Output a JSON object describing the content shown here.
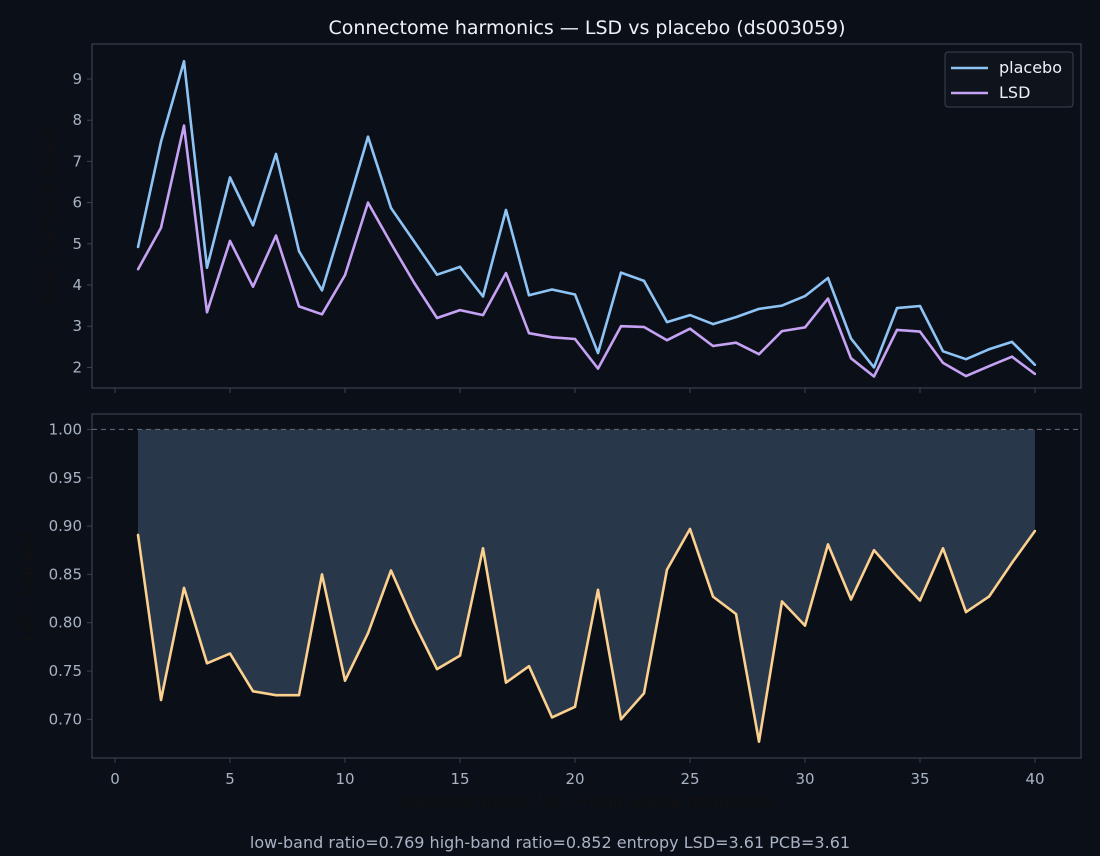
{
  "chart_data": {
    "title": "Connectome harmonics — LSD vs placebo (ds003059)",
    "footer": "low-band ratio=0.769  high-band ratio=0.852  entropy LSD=3.61 PCB=3.61",
    "colors": {
      "background": "#0b0f17",
      "frame": "#3a4150",
      "placebo": "#8ec4f5",
      "lsd": "#c6a2f5",
      "ratio": "#fcd08f",
      "fill": "#2b3a4e",
      "reference": "#5d6575"
    },
    "panels": [
      {
        "type": "line",
        "ylabel": "mean harmonic power",
        "xlim": [
          -1,
          42
        ],
        "ylim": [
          1.5,
          9.85
        ],
        "xticks": [],
        "yticks": [
          2,
          3,
          4,
          5,
          6,
          7,
          8,
          9
        ],
        "grid": false,
        "legend": "top-right",
        "series": [
          {
            "name": "placebo",
            "x": [
              1,
              2,
              3,
              4,
              5,
              6,
              7,
              8,
              9,
              10,
              11,
              12,
              13,
              14,
              15,
              16,
              17,
              18,
              19,
              20,
              21,
              22,
              23,
              24,
              25,
              26,
              27,
              28,
              29,
              30,
              31,
              32,
              33,
              34,
              35,
              36,
              37,
              38,
              39,
              40
            ],
            "y": [
              4.92,
              7.48,
              9.43,
              4.42,
              6.61,
              5.45,
              7.18,
              4.82,
              3.87,
              5.71,
              7.6,
              5.87,
              5.06,
              4.25,
              4.44,
              3.72,
              5.82,
              3.75,
              3.89,
              3.77,
              2.35,
              4.3,
              4.1,
              3.1,
              3.27,
              3.05,
              3.22,
              3.42,
              3.5,
              3.73,
              4.17,
              2.7,
              2.0,
              3.44,
              3.49,
              2.39,
              2.2,
              2.44,
              2.62,
              2.06
            ]
          },
          {
            "name": "LSD",
            "x": [
              1,
              2,
              3,
              4,
              5,
              6,
              7,
              8,
              9,
              10,
              11,
              12,
              13,
              14,
              15,
              16,
              17,
              18,
              19,
              20,
              21,
              22,
              23,
              24,
              25,
              26,
              27,
              28,
              29,
              30,
              31,
              32,
              33,
              34,
              35,
              36,
              37,
              38,
              39,
              40
            ],
            "y": [
              4.38,
              5.39,
              7.87,
              3.34,
              5.07,
              3.96,
              5.2,
              3.48,
              3.29,
              4.24,
              6.0,
              5.01,
              4.06,
              3.2,
              3.39,
              3.27,
              4.29,
              2.83,
              2.73,
              2.69,
              1.97,
              3.0,
              2.98,
              2.66,
              2.94,
              2.52,
              2.6,
              2.32,
              2.88,
              2.97,
              3.67,
              2.22,
              1.78,
              2.91,
              2.87,
              2.11,
              1.79,
              2.03,
              2.26,
              1.84
            ]
          }
        ]
      },
      {
        "type": "area",
        "xlabel": "harmonic mode (low → high spatial frequency)",
        "ylabel": "LSD / placebo",
        "xlim": [
          -1,
          42
        ],
        "ylim": [
          0.66,
          1.016
        ],
        "xticks": [
          0,
          5,
          10,
          15,
          20,
          25,
          30,
          35,
          40
        ],
        "yticks": [
          "0.70",
          "0.75",
          "0.80",
          "0.85",
          "0.90",
          "0.95",
          "1.00"
        ],
        "reference_line": 1.0,
        "fill_to": 1.0,
        "grid": false,
        "series": [
          {
            "x": [
              1,
              2,
              3,
              4,
              5,
              6,
              7,
              8,
              9,
              10,
              11,
              12,
              13,
              14,
              15,
              16,
              17,
              18,
              19,
              20,
              21,
              22,
              23,
              24,
              25,
              26,
              27,
              28,
              29,
              30,
              31,
              32,
              33,
              34,
              35,
              36,
              37,
              38,
              39,
              40
            ],
            "y": [
              0.891,
              0.72,
              0.836,
              0.758,
              0.768,
              0.729,
              0.725,
              0.725,
              0.85,
              0.74,
              0.789,
              0.854,
              0.8,
              0.752,
              0.766,
              0.877,
              0.738,
              0.755,
              0.702,
              0.713,
              0.834,
              0.7,
              0.727,
              0.855,
              0.897,
              0.827,
              0.809,
              0.677,
              0.822,
              0.797,
              0.881,
              0.824,
              0.875,
              0.848,
              0.823,
              0.877,
              0.811,
              0.827,
              0.862,
              0.895
            ]
          }
        ]
      }
    ]
  }
}
